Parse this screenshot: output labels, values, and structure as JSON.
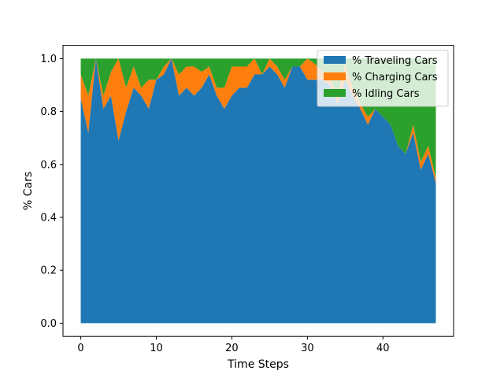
{
  "chart_data": {
    "type": "area",
    "stacked": true,
    "xlabel": "Time Steps",
    "ylabel": "% Cars",
    "xlim": [
      -2.35,
      49.35
    ],
    "ylim": [
      -0.05,
      1.05
    ],
    "x_ticks": [
      0,
      10,
      20,
      30,
      40
    ],
    "y_ticks": [
      0.0,
      0.2,
      0.4,
      0.6,
      0.8,
      1.0
    ],
    "x_tick_labels": [
      "0",
      "10",
      "20",
      "30",
      "40"
    ],
    "y_tick_labels": [
      "0.0",
      "0.2",
      "0.4",
      "0.6",
      "0.8",
      "1.0"
    ],
    "legend_position": "top-right",
    "x": [
      0,
      1,
      2,
      3,
      4,
      5,
      6,
      7,
      8,
      9,
      10,
      11,
      12,
      13,
      14,
      15,
      16,
      17,
      18,
      19,
      20,
      21,
      22,
      23,
      24,
      25,
      26,
      27,
      28,
      29,
      30,
      31,
      32,
      33,
      34,
      35,
      36,
      37,
      38,
      39,
      40,
      41,
      42,
      43,
      44,
      45,
      46,
      47
    ],
    "series": [
      {
        "name": "% Traveling Cars",
        "color": "#1f77b4",
        "values": [
          0.85,
          0.72,
          1.0,
          0.81,
          0.86,
          0.69,
          0.8,
          0.89,
          0.86,
          0.81,
          0.92,
          0.94,
          1.0,
          0.86,
          0.89,
          0.86,
          0.89,
          0.94,
          0.86,
          0.81,
          0.86,
          0.89,
          0.89,
          0.94,
          0.94,
          0.97,
          0.94,
          0.89,
          0.97,
          0.97,
          0.92,
          0.92,
          0.92,
          0.9,
          0.83,
          0.92,
          0.86,
          0.81,
          0.75,
          0.81,
          0.78,
          0.75,
          0.67,
          0.64,
          0.72,
          0.58,
          0.64,
          0.53
        ]
      },
      {
        "name": "% Charging Cars",
        "color": "#ff7f0e",
        "values": [
          0.09,
          0.14,
          0.0,
          0.05,
          0.09,
          0.31,
          0.09,
          0.08,
          0.03,
          0.11,
          0.0,
          0.03,
          0.0,
          0.08,
          0.08,
          0.11,
          0.06,
          0.03,
          0.03,
          0.08,
          0.11,
          0.08,
          0.08,
          0.06,
          0.0,
          0.03,
          0.03,
          0.03,
          0.0,
          0.0,
          0.08,
          0.06,
          0.03,
          0.02,
          0.03,
          0.06,
          0.03,
          0.02,
          0.03,
          0.0,
          0.0,
          0.0,
          0.0,
          0.0,
          0.03,
          0.03,
          0.03,
          0.02
        ]
      },
      {
        "name": "% Idling Cars",
        "color": "#2ca02c",
        "values": [
          0.06,
          0.14,
          0.0,
          0.14,
          0.05,
          0.0,
          0.11,
          0.03,
          0.11,
          0.08,
          0.08,
          0.03,
          0.0,
          0.06,
          0.03,
          0.03,
          0.05,
          0.03,
          0.11,
          0.11,
          0.03,
          0.03,
          0.03,
          0.0,
          0.06,
          0.0,
          0.03,
          0.08,
          0.03,
          0.03,
          0.0,
          0.02,
          0.05,
          0.08,
          0.14,
          0.02,
          0.11,
          0.17,
          0.22,
          0.19,
          0.22,
          0.25,
          0.33,
          0.36,
          0.25,
          0.39,
          0.33,
          0.45
        ]
      }
    ]
  }
}
